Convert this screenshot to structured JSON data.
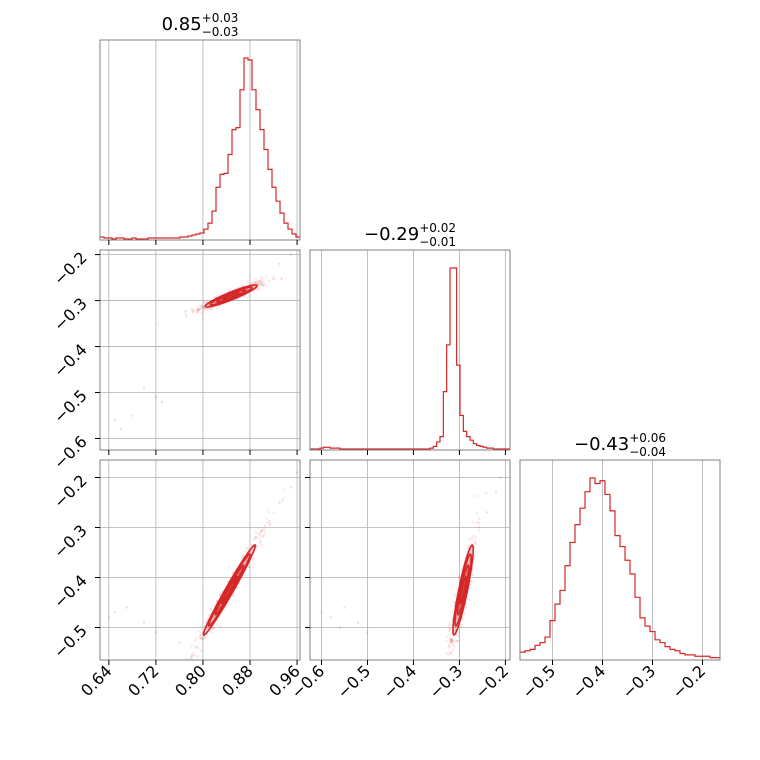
{
  "colors": {
    "series": "#d62728",
    "grid": "#b0b0b0",
    "axis": "#000000",
    "frame": "#808080"
  },
  "chart_data": {
    "type": "corner",
    "parameters": [
      {
        "range": [
          0.625,
          0.965
        ],
        "ticks": [
          0.64,
          0.72,
          0.8,
          0.88,
          0.96
        ],
        "tick_labels": [
          "0.64",
          "0.72",
          "0.80",
          "0.88",
          "0.96"
        ],
        "title": {
          "median": "0.85",
          "plus": "+0.03",
          "minus": "−0.03"
        }
      },
      {
        "range": [
          -0.625,
          -0.19
        ],
        "ticks": [
          -0.6,
          -0.5,
          -0.4,
          -0.3,
          -0.2
        ],
        "tick_labels": [
          "−0.6",
          "−0.5",
          "−0.4",
          "−0.3",
          "−0.2"
        ],
        "title": {
          "median": "−0.29",
          "plus": "+0.02",
          "minus": "−0.01"
        }
      },
      {
        "range": [
          -0.565,
          -0.165
        ],
        "ticks": [
          -0.5,
          -0.4,
          -0.3,
          -0.2
        ],
        "tick_labels": [
          "−0.5",
          "−0.4",
          "−0.3",
          "−0.2"
        ],
        "title": {
          "median": "−0.43",
          "plus": "+0.06",
          "minus": "−0.04"
        }
      }
    ],
    "histograms": [
      {
        "param": 0,
        "bin_edges": [
          0.625,
          0.967
        ],
        "counts": [
          2,
          1,
          1,
          0,
          1,
          1,
          0,
          0,
          1,
          0,
          0,
          0,
          1,
          1,
          1,
          1,
          1,
          1,
          1,
          1,
          2,
          2,
          3,
          4,
          5,
          6,
          10,
          16,
          28,
          52,
          65,
          66,
          85,
          110,
          112,
          150,
          182,
          180,
          150,
          130,
          110,
          90,
          70,
          52,
          38,
          26,
          16,
          10,
          5,
          2
        ]
      },
      {
        "param": 1,
        "bin_edges": [
          -0.625,
          -0.19
        ],
        "counts": [
          0,
          0,
          0,
          1,
          2,
          2,
          1,
          1,
          1,
          0,
          0,
          0,
          0,
          0,
          0,
          0,
          0,
          0,
          0,
          0,
          0,
          0,
          0,
          0,
          0,
          0,
          0,
          0,
          0,
          0,
          0,
          0,
          0,
          0,
          0,
          0,
          1,
          3,
          8,
          14,
          65,
          118,
          205,
          205,
          95,
          38,
          20,
          14,
          10,
          6,
          4,
          3,
          2,
          1,
          1,
          0,
          0,
          0,
          0,
          0
        ]
      },
      {
        "param": 2,
        "bin_edges": [
          -0.565,
          -0.165
        ],
        "counts": [
          5,
          6,
          7,
          10,
          12,
          16,
          28,
          40,
          50,
          68,
          85,
          98,
          110,
          122,
          132,
          128,
          130,
          120,
          108,
          90,
          82,
          72,
          62,
          45,
          30,
          24,
          20,
          14,
          12,
          9,
          7,
          6,
          4,
          3,
          3,
          2,
          2,
          2,
          1,
          1
        ]
      }
    ],
    "density_2d": [
      {
        "x_param": 0,
        "y_param": 1,
        "center": [
          0.848,
          -0.29
        ],
        "sigma_x": 0.022,
        "sigma_y": 0.012,
        "correlation": 0.93,
        "outliers": [
          [
            0.65,
            -0.56
          ],
          [
            0.66,
            -0.58
          ],
          [
            0.68,
            -0.55
          ],
          [
            0.7,
            -0.49
          ],
          [
            0.72,
            -0.51
          ],
          [
            0.73,
            -0.52
          ],
          [
            0.9,
            -0.25
          ],
          [
            0.93,
            -0.22
          ],
          [
            0.95,
            -0.2
          ]
        ]
      },
      {
        "x_param": 0,
        "y_param": 2,
        "center": [
          0.845,
          -0.425
        ],
        "sigma_x": 0.022,
        "sigma_y": 0.045,
        "correlation": 0.985,
        "outliers": [
          [
            0.64,
            -0.48
          ],
          [
            0.65,
            -0.47
          ],
          [
            0.67,
            -0.46
          ],
          [
            0.7,
            -0.49
          ],
          [
            0.72,
            -0.51
          ],
          [
            0.76,
            -0.53
          ],
          [
            0.93,
            -0.25
          ],
          [
            0.95,
            -0.22
          ],
          [
            0.96,
            -0.19
          ]
        ]
      },
      {
        "x_param": 1,
        "y_param": 2,
        "center": [
          -0.292,
          -0.425
        ],
        "sigma_x": 0.011,
        "sigma_y": 0.045,
        "correlation": 0.9,
        "outliers": [
          [
            -0.6,
            -0.47
          ],
          [
            -0.58,
            -0.48
          ],
          [
            -0.56,
            -0.5
          ],
          [
            -0.55,
            -0.46
          ],
          [
            -0.52,
            -0.49
          ],
          [
            -0.5,
            -0.51
          ],
          [
            -0.24,
            -0.27
          ],
          [
            -0.22,
            -0.23
          ],
          [
            -0.21,
            -0.2
          ]
        ]
      }
    ],
    "grid": true,
    "legend": "none"
  }
}
